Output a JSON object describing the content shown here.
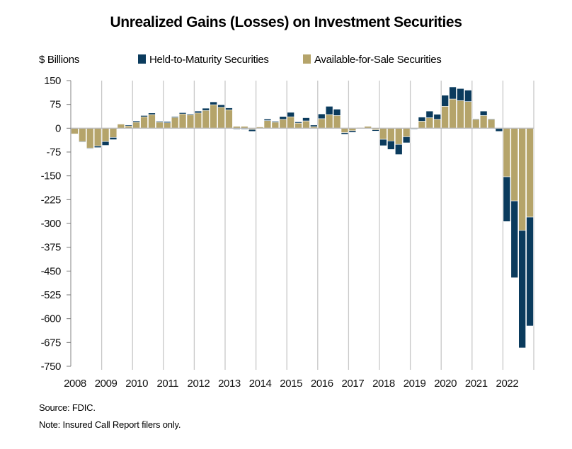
{
  "chart_data": {
    "type": "bar",
    "stacked": true,
    "title": "Unrealized Gains (Losses) on Investment Securities",
    "ylabel": "$ Billions",
    "xlabel": "",
    "ylim": [
      -750,
      150
    ],
    "yticks": [
      150,
      75,
      0,
      -75,
      -150,
      -225,
      -300,
      -375,
      -450,
      -525,
      -600,
      -675,
      -750
    ],
    "years": [
      "2008",
      "2009",
      "2010",
      "2011",
      "2012",
      "2013",
      "2014",
      "2015",
      "2016",
      "2017",
      "2018",
      "2019",
      "2020",
      "2021",
      "2022"
    ],
    "quarters_per_year": 4,
    "categories": [
      "2008Q1",
      "2008Q2",
      "2008Q3",
      "2008Q4",
      "2009Q1",
      "2009Q2",
      "2009Q3",
      "2009Q4",
      "2010Q1",
      "2010Q2",
      "2010Q3",
      "2010Q4",
      "2011Q1",
      "2011Q2",
      "2011Q3",
      "2011Q4",
      "2012Q1",
      "2012Q2",
      "2012Q3",
      "2012Q4",
      "2013Q1",
      "2013Q2",
      "2013Q3",
      "2013Q4",
      "2014Q1",
      "2014Q2",
      "2014Q3",
      "2014Q4",
      "2015Q1",
      "2015Q2",
      "2015Q3",
      "2015Q4",
      "2016Q1",
      "2016Q2",
      "2016Q3",
      "2016Q4",
      "2017Q1",
      "2017Q2",
      "2017Q3",
      "2017Q4",
      "2018Q1",
      "2018Q2",
      "2018Q3",
      "2018Q4",
      "2019Q1",
      "2019Q2",
      "2019Q3",
      "2019Q4",
      "2020Q1",
      "2020Q2",
      "2020Q3",
      "2020Q4",
      "2021Q1",
      "2021Q2",
      "2021Q3",
      "2021Q4",
      "2022Q1",
      "2022Q2",
      "2022Q3",
      "2022Q4"
    ],
    "series": [
      {
        "name": "Available-for-Sale Securities",
        "color": "#B5A46A",
        "values": [
          -18,
          -42,
          -63,
          -56,
          -42,
          -29,
          13,
          7,
          19,
          36,
          43,
          19,
          17,
          34,
          45,
          42,
          48,
          56,
          74,
          66,
          58,
          6,
          6,
          -4,
          4,
          24,
          19,
          28,
          36,
          16,
          23,
          5,
          30,
          43,
          40,
          -14,
          -8,
          2,
          6,
          -5,
          -35,
          -40,
          -51,
          -27,
          -1,
          22,
          33,
          28,
          69,
          92,
          87,
          84,
          28,
          40,
          28,
          -1,
          -153,
          -229,
          -322,
          -280
        ]
      },
      {
        "name": "Held-to-Maturity Securities",
        "color": "#0B3B5D",
        "values": [
          -1,
          -2,
          -2,
          -5,
          -12,
          -7,
          0,
          3,
          4,
          4,
          5,
          3,
          4,
          3,
          4,
          3,
          6,
          7,
          9,
          8,
          6,
          -3,
          -3,
          -6,
          -2,
          5,
          3,
          9,
          14,
          4,
          10,
          5,
          15,
          26,
          20,
          -5,
          -5,
          0,
          0,
          -4,
          -20,
          -27,
          -32,
          -19,
          -2,
          13,
          21,
          16,
          35,
          38,
          38,
          36,
          2,
          14,
          2,
          -9,
          -141,
          -242,
          -370,
          -343
        ]
      }
    ],
    "legend": {
      "position": "top",
      "entries": [
        {
          "label": "Held-to-Maturity Securities",
          "color": "#0B3B5D"
        },
        {
          "label": "Available-for-Sale Securities",
          "color": "#B5A46A"
        }
      ]
    },
    "grid": {
      "vertical_year_lines": true,
      "horizontal": false
    },
    "source": "Source: FDIC.",
    "note": "Note: Insured Call Report filers only."
  }
}
